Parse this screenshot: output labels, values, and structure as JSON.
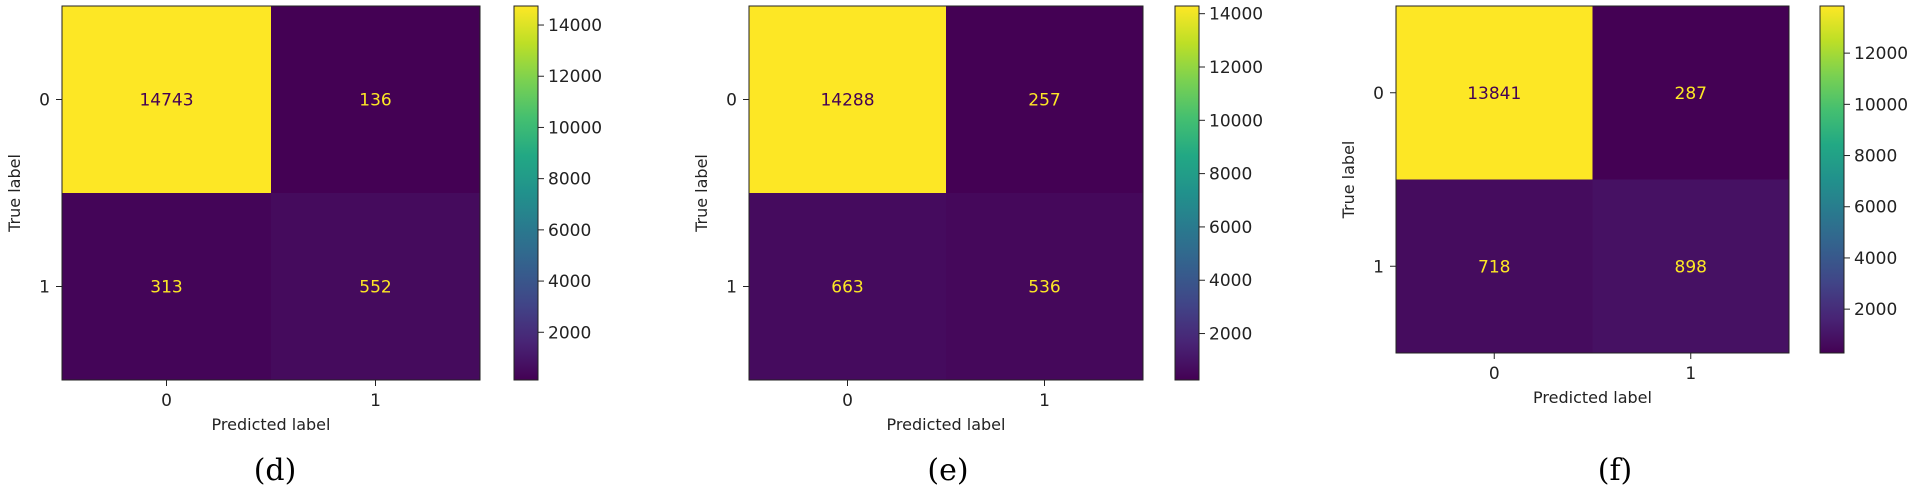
{
  "chart_data": [
    {
      "type": "heatmap",
      "subtype": "confusion_matrix",
      "caption": "(d)",
      "xlabel": "Predicted label",
      "ylabel": "True label",
      "x_tick_labels": [
        "0",
        "1"
      ],
      "y_tick_labels": [
        "0",
        "1"
      ],
      "matrix": [
        [
          14743,
          136
        ],
        [
          313,
          552
        ]
      ],
      "colormap": "viridis",
      "colorbar_range": [
        136,
        14743
      ],
      "colorbar_ticks": [
        2000,
        4000,
        6000,
        8000,
        10000,
        12000,
        14000
      ],
      "text_colors": {
        "on_dark": "#fde725",
        "on_light": "#440154"
      }
    },
    {
      "type": "heatmap",
      "subtype": "confusion_matrix",
      "caption": "(e)",
      "xlabel": "Predicted label",
      "ylabel": "True label",
      "x_tick_labels": [
        "0",
        "1"
      ],
      "y_tick_labels": [
        "0",
        "1"
      ],
      "matrix": [
        [
          14288,
          257
        ],
        [
          663,
          536
        ]
      ],
      "colormap": "viridis",
      "colorbar_range": [
        257,
        14288
      ],
      "colorbar_ticks": [
        2000,
        4000,
        6000,
        8000,
        10000,
        12000,
        14000
      ],
      "text_colors": {
        "on_dark": "#fde725",
        "on_light": "#440154"
      }
    },
    {
      "type": "heatmap",
      "subtype": "confusion_matrix",
      "caption": "(f)",
      "xlabel": "Predicted label",
      "ylabel": "True label",
      "x_tick_labels": [
        "0",
        "1"
      ],
      "y_tick_labels": [
        "0",
        "1"
      ],
      "matrix": [
        [
          13841,
          287
        ],
        [
          718,
          898
        ]
      ],
      "colormap": "viridis",
      "colorbar_range": [
        287,
        13841
      ],
      "colorbar_ticks": [
        2000,
        4000,
        6000,
        8000,
        10000,
        12000
      ],
      "text_colors": {
        "on_dark": "#fde725",
        "on_light": "#440154"
      }
    }
  ]
}
